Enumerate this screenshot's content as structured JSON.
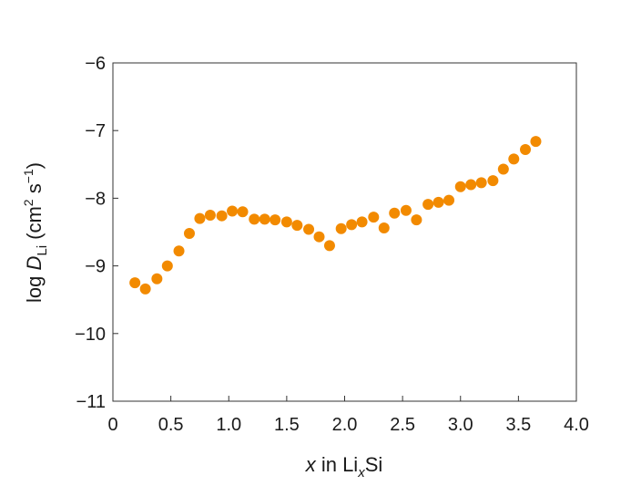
{
  "chart_data": {
    "type": "scatter",
    "xlabel": {
      "italic_prefix": "x",
      "text_middle": " in Li",
      "subscript": "x",
      "text_suffix": "Si"
    },
    "ylabel": {
      "prefix": "log ",
      "symbol": "D",
      "subscript": "Li",
      "unit_open": " (cm",
      "unit_sup1": "2",
      "unit_mid": " s",
      "unit_sup2": "−1",
      "unit_close": ")"
    },
    "xlim": [
      0,
      4.0
    ],
    "ylim": [
      -11,
      -6
    ],
    "x_ticks": [
      {
        "value": 0,
        "label": "0"
      },
      {
        "value": 0.5,
        "label": "0.5"
      },
      {
        "value": 1.0,
        "label": "1.0"
      },
      {
        "value": 1.5,
        "label": "1.5"
      },
      {
        "value": 2.0,
        "label": "2.0"
      },
      {
        "value": 2.5,
        "label": "2.5"
      },
      {
        "value": 3.0,
        "label": "3.0"
      },
      {
        "value": 3.5,
        "label": "3.5"
      },
      {
        "value": 4.0,
        "label": "4.0"
      }
    ],
    "y_ticks": [
      {
        "value": -6,
        "label": "−6"
      },
      {
        "value": -7,
        "label": "−7"
      },
      {
        "value": -8,
        "label": "−8"
      },
      {
        "value": -9,
        "label": "−9"
      },
      {
        "value": -10,
        "label": "−10"
      },
      {
        "value": -11,
        "label": "−11"
      }
    ],
    "grid": false,
    "marker_color": "#F28A00",
    "series": [
      {
        "points": [
          {
            "x": 0.19,
            "y": -9.25
          },
          {
            "x": 0.28,
            "y": -9.34
          },
          {
            "x": 0.38,
            "y": -9.19
          },
          {
            "x": 0.47,
            "y": -9.0
          },
          {
            "x": 0.57,
            "y": -8.78
          },
          {
            "x": 0.66,
            "y": -8.52
          },
          {
            "x": 0.75,
            "y": -8.3
          },
          {
            "x": 0.84,
            "y": -8.25
          },
          {
            "x": 0.94,
            "y": -8.26
          },
          {
            "x": 1.03,
            "y": -8.19
          },
          {
            "x": 1.12,
            "y": -8.2
          },
          {
            "x": 1.22,
            "y": -8.31
          },
          {
            "x": 1.31,
            "y": -8.31
          },
          {
            "x": 1.4,
            "y": -8.32
          },
          {
            "x": 1.5,
            "y": -8.35
          },
          {
            "x": 1.59,
            "y": -8.4
          },
          {
            "x": 1.69,
            "y": -8.46
          },
          {
            "x": 1.78,
            "y": -8.57
          },
          {
            "x": 1.87,
            "y": -8.7
          },
          {
            "x": 1.97,
            "y": -8.45
          },
          {
            "x": 2.06,
            "y": -8.39
          },
          {
            "x": 2.15,
            "y": -8.35
          },
          {
            "x": 2.25,
            "y": -8.28
          },
          {
            "x": 2.34,
            "y": -8.44
          },
          {
            "x": 2.43,
            "y": -8.22
          },
          {
            "x": 2.53,
            "y": -8.18
          },
          {
            "x": 2.62,
            "y": -8.32
          },
          {
            "x": 2.72,
            "y": -8.09
          },
          {
            "x": 2.81,
            "y": -8.06
          },
          {
            "x": 2.9,
            "y": -8.03
          },
          {
            "x": 3.0,
            "y": -7.83
          },
          {
            "x": 3.09,
            "y": -7.8
          },
          {
            "x": 3.18,
            "y": -7.77
          },
          {
            "x": 3.28,
            "y": -7.74
          },
          {
            "x": 3.37,
            "y": -7.57
          },
          {
            "x": 3.46,
            "y": -7.42
          },
          {
            "x": 3.56,
            "y": -7.28
          },
          {
            "x": 3.65,
            "y": -7.16
          }
        ]
      }
    ]
  }
}
